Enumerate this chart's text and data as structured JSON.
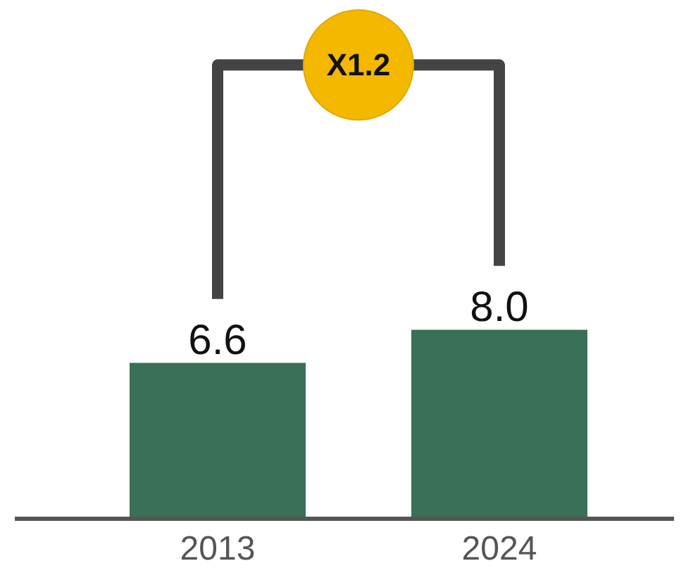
{
  "chart_data": {
    "type": "bar",
    "categories": [
      "2013",
      "2024"
    ],
    "values": [
      6.6,
      8.0
    ],
    "color": "#3a7058",
    "value_labels": [
      "6.6",
      "8.0"
    ],
    "annotations": [
      "X1.2"
    ]
  }
}
